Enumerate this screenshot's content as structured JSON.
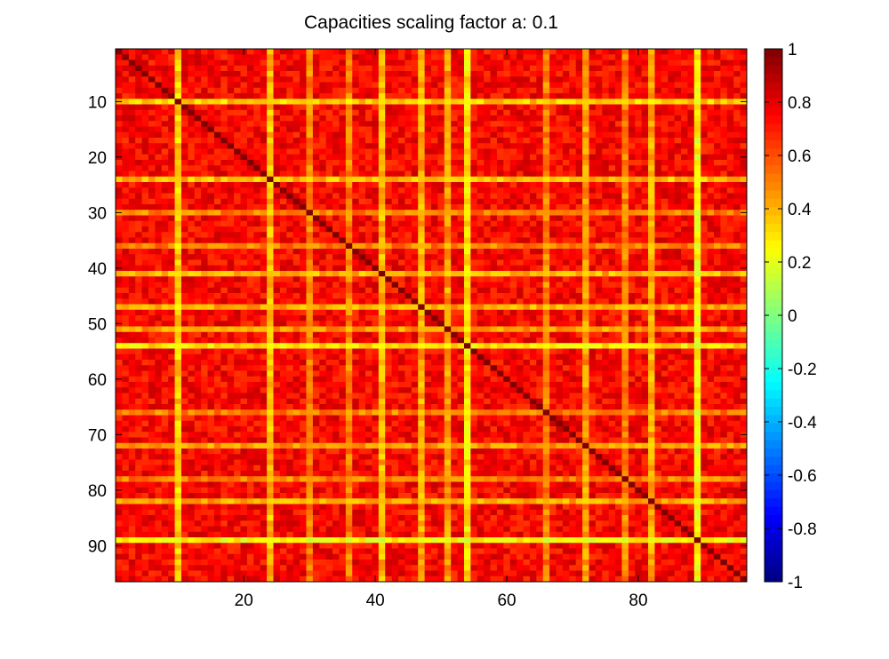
{
  "chart_data": {
    "type": "heatmap",
    "title": "Capacities scaling factor a: 0.1",
    "xlabel": "",
    "ylabel": "",
    "n": 96,
    "xlim": [
      0.5,
      96.5
    ],
    "ylim": [
      0.5,
      96.5
    ],
    "y_reversed": true,
    "x_ticks": [
      20,
      40,
      60,
      80
    ],
    "x_tick_labels": [
      "20",
      "40",
      "60",
      "80"
    ],
    "y_ticks": [
      10,
      20,
      30,
      40,
      50,
      60,
      70,
      80,
      90
    ],
    "y_tick_labels": [
      "10",
      "20",
      "30",
      "40",
      "50",
      "60",
      "70",
      "80",
      "90"
    ],
    "colormap": "jet",
    "clim": [
      -1,
      1
    ],
    "colorbar_ticks": [
      1,
      0.8,
      0.6,
      0.4,
      0.2,
      0,
      -0.2,
      -0.4,
      -0.6,
      -0.8,
      -1
    ],
    "colorbar_tick_labels": [
      "1",
      "0.8",
      "0.6",
      "0.4",
      "0.2",
      "0",
      "-0.2",
      "-0.4",
      "-0.6",
      "-0.8",
      "-1"
    ],
    "colorbar_placement": "right",
    "grid": false,
    "diagonal_value": 1.0,
    "typical_value": 0.75,
    "weak_indices": [
      10,
      24,
      30,
      36,
      41,
      47,
      51,
      54,
      66,
      72,
      78,
      82,
      89
    ],
    "weak_index_values": [
      0.35,
      0.38,
      0.5,
      0.5,
      0.4,
      0.42,
      0.45,
      0.3,
      0.5,
      0.45,
      0.5,
      0.42,
      0.25
    ]
  }
}
